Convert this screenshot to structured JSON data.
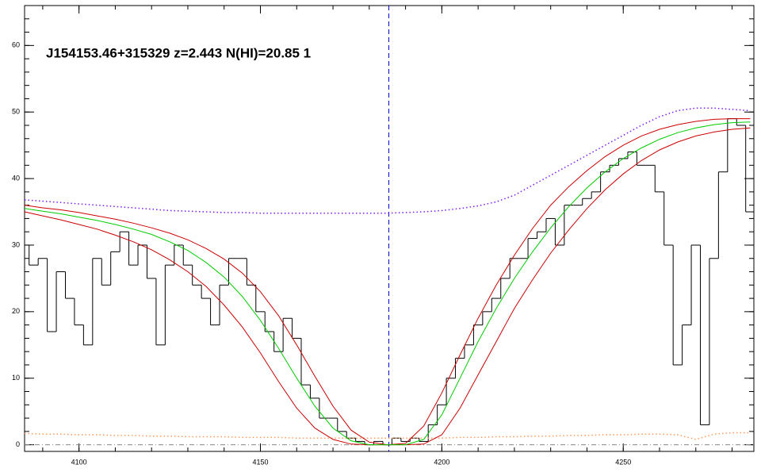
{
  "chart_data": {
    "type": "line",
    "annotation": "J154153.46+315329 z=2.443 N(HI)=20.85 1",
    "xlim": [
      4085,
      4286
    ],
    "ylim": [
      -1,
      66
    ],
    "xticks": [
      4100,
      4150,
      4200,
      4250
    ],
    "yticks": [
      0,
      10,
      20,
      30,
      40,
      50,
      60
    ],
    "vline": 4185.4,
    "vline_color": "#0000cc",
    "hline": 0,
    "hline_color": "#888888",
    "series": [
      {
        "style": "step",
        "color": "#000000",
        "x": [
          4085,
          4087.5,
          4090,
          4092.5,
          4095,
          4097.5,
          4100,
          4102.5,
          4105,
          4107.5,
          4110,
          4112.5,
          4115,
          4117.5,
          4120,
          4122.5,
          4125,
          4127.5,
          4130,
          4132.5,
          4135,
          4137.5,
          4140,
          4142.5,
          4145,
          4147.5,
          4150,
          4152.5,
          4155,
          4157.5,
          4160,
          4162.5,
          4165,
          4167.5,
          4170,
          4172.5,
          4175,
          4177.5,
          4180,
          4182.5,
          4185,
          4187.5,
          4190,
          4192.5,
          4195,
          4197.5,
          4200,
          4202.5,
          4205,
          4207.5,
          4210,
          4212.5,
          4215,
          4217.5,
          4220,
          4222.5,
          4225,
          4227.5,
          4230,
          4232.5,
          4235,
          4237.5,
          4240,
          4242.5,
          4245,
          4247.5,
          4250,
          4252.5,
          4255,
          4257.5,
          4260,
          4262.5,
          4265,
          4267.5,
          4270,
          4272.5,
          4275,
          4277.5,
          4280,
          4282.5,
          4285
        ],
        "values": [
          30,
          27,
          28,
          17,
          26,
          22,
          18,
          15,
          28,
          24,
          29,
          32,
          27,
          30,
          25,
          15,
          27,
          30,
          27,
          24,
          22,
          18,
          24,
          28,
          28,
          24,
          20,
          17,
          14,
          19,
          16,
          9,
          7,
          4,
          4,
          2,
          1,
          0.5,
          0,
          0.5,
          0,
          1,
          0.5,
          1,
          0.5,
          3,
          6,
          10,
          13,
          15,
          18,
          20,
          22,
          25,
          28,
          28,
          31,
          32,
          34,
          30,
          36,
          36,
          37,
          38,
          41,
          42,
          43,
          44,
          42,
          42,
          38,
          30,
          12,
          18,
          30,
          3,
          28,
          41,
          49,
          48,
          35
        ]
      },
      {
        "style": "dotted",
        "color": "#7a1aff",
        "x": [
          4085,
          4090,
          4095,
          4100,
          4105,
          4110,
          4115,
          4120,
          4125,
          4130,
          4135,
          4140,
          4145,
          4150,
          4155,
          4160,
          4165,
          4170,
          4175,
          4180,
          4185,
          4190,
          4195,
          4200,
          4205,
          4210,
          4215,
          4220,
          4225,
          4230,
          4235,
          4240,
          4245,
          4250,
          4255,
          4260,
          4265,
          4270,
          4275,
          4280,
          4285
        ],
        "values": [
          36.8,
          36.6,
          36.4,
          36.2,
          36,
          35.8,
          35.6,
          35.4,
          35.2,
          35.1,
          35,
          34.9,
          34.9,
          34.8,
          34.8,
          34.8,
          34.8,
          34.8,
          34.8,
          34.8,
          34.8,
          34.9,
          35,
          35.2,
          35.5,
          35.9,
          36.5,
          37.5,
          39,
          40.5,
          42,
          43.5,
          45,
          46.5,
          48,
          49.3,
          50.2,
          50.6,
          50.6,
          50.4,
          50.2
        ]
      },
      {
        "style": "dotted",
        "color": "#ff9955",
        "x": [
          4085,
          4090,
          4095,
          4100,
          4105,
          4110,
          4115,
          4120,
          4125,
          4130,
          4135,
          4140,
          4145,
          4150,
          4155,
          4160,
          4165,
          4170,
          4175,
          4180,
          4185,
          4190,
          4195,
          4200,
          4205,
          4210,
          4215,
          4220,
          4225,
          4230,
          4235,
          4240,
          4245,
          4250,
          4255,
          4260,
          4265,
          4270,
          4275,
          4280,
          4285
        ],
        "values": [
          1.7,
          1.6,
          1.6,
          1.5,
          1.5,
          1.4,
          1.4,
          1.3,
          1.3,
          1.2,
          1.2,
          1.2,
          1.1,
          1.1,
          1.1,
          1.0,
          1.0,
          1.0,
          1.0,
          1.0,
          1.0,
          1.0,
          1.0,
          1.0,
          1.1,
          1.1,
          1.2,
          1.2,
          1.3,
          1.3,
          1.4,
          1.4,
          1.5,
          1.5,
          1.6,
          1.6,
          1.5,
          0.8,
          1.6,
          1.8,
          1.8
        ]
      },
      {
        "style": "solid",
        "color": "#cc0000",
        "x": [
          4085,
          4090,
          4095,
          4100,
          4105,
          4110,
          4115,
          4120,
          4125,
          4130,
          4135,
          4140,
          4145,
          4150,
          4155,
          4160,
          4165,
          4170,
          4175,
          4180,
          4185,
          4190,
          4195,
          4200,
          4205,
          4210,
          4215,
          4220,
          4225,
          4230,
          4235,
          4240,
          4245,
          4250,
          4255,
          4260,
          4265,
          4270,
          4275,
          4280,
          4285
        ],
        "values": [
          36,
          35.6,
          35.3,
          34.9,
          34.4,
          33.9,
          33.3,
          32.6,
          31.8,
          30.8,
          29.5,
          27.9,
          25.8,
          23,
          19.4,
          15,
          10.3,
          5.8,
          2.2,
          0.4,
          0,
          0.2,
          2.8,
          7.8,
          13.5,
          19,
          24,
          28.5,
          32.5,
          36,
          38.8,
          41.2,
          43.3,
          45,
          46.4,
          47.4,
          48.1,
          48.6,
          48.9,
          49,
          49
        ]
      },
      {
        "style": "solid",
        "color": "#cc0000",
        "x": [
          4085,
          4090,
          4095,
          4100,
          4105,
          4110,
          4115,
          4120,
          4125,
          4130,
          4135,
          4140,
          4145,
          4150,
          4155,
          4160,
          4165,
          4170,
          4175,
          4180,
          4185,
          4190,
          4195,
          4200,
          4205,
          4210,
          4215,
          4220,
          4225,
          4230,
          4235,
          4240,
          4245,
          4250,
          4255,
          4260,
          4265,
          4270,
          4275,
          4280,
          4285
        ],
        "values": [
          35,
          34.4,
          33.8,
          33.1,
          32.4,
          31.5,
          30.5,
          29.3,
          27.8,
          26,
          23.8,
          21,
          17.7,
          13.8,
          9.5,
          5.5,
          2.5,
          0.8,
          0.1,
          0,
          0,
          0,
          0.1,
          1.5,
          5.5,
          10.5,
          15.5,
          20.5,
          24.8,
          28.8,
          32.3,
          35.5,
          38.3,
          40.7,
          42.7,
          44.3,
          45.5,
          46.4,
          47,
          47.4,
          47.6
        ]
      },
      {
        "style": "solid",
        "color": "#00cc00",
        "x": [
          4085,
          4090,
          4095,
          4100,
          4105,
          4110,
          4115,
          4120,
          4125,
          4130,
          4135,
          4140,
          4145,
          4150,
          4155,
          4160,
          4165,
          4170,
          4175,
          4180,
          4185,
          4190,
          4195,
          4200,
          4205,
          4210,
          4215,
          4220,
          4225,
          4230,
          4235,
          4240,
          4245,
          4250,
          4255,
          4260,
          4265,
          4270,
          4275,
          4280,
          4285
        ],
        "values": [
          35.5,
          35.1,
          34.7,
          34.2,
          33.7,
          33.1,
          32.4,
          31.6,
          30.5,
          29.2,
          27.4,
          25.2,
          22.3,
          18.7,
          14.5,
          10,
          5.8,
          2.5,
          0.6,
          0,
          0,
          0,
          0.8,
          4.5,
          10,
          15.5,
          20.5,
          25,
          29,
          32.6,
          35.8,
          38.6,
          41,
          43,
          44.6,
          45.9,
          46.9,
          47.6,
          48.1,
          48.4,
          48.5
        ]
      }
    ]
  }
}
